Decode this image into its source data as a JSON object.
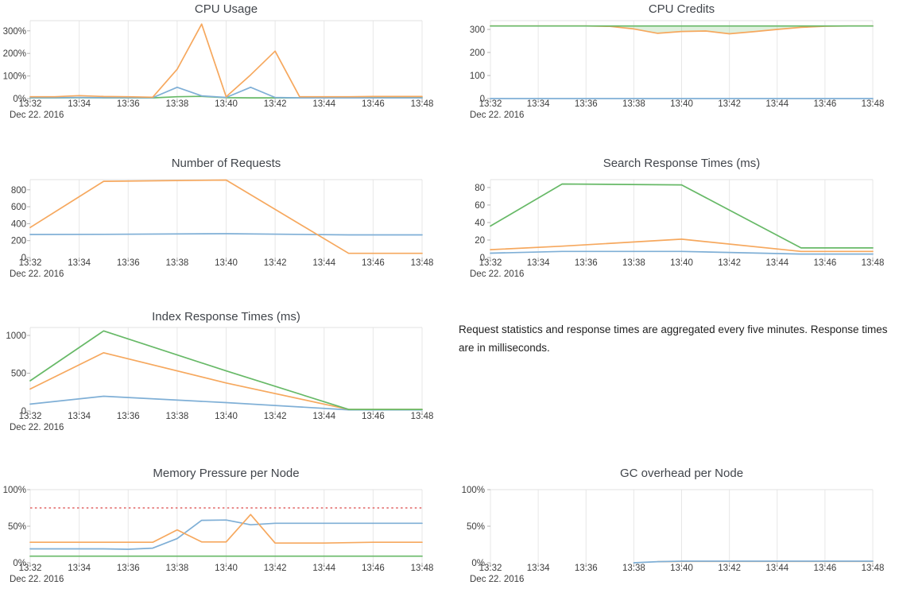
{
  "note": {
    "text": "Request statistics and response times are aggregated every five minutes. Response times are in milliseconds."
  },
  "palette": {
    "blue": "#7fafd6",
    "orange": "#f6a85e",
    "green": "#67b967",
    "red": "#e88a8a",
    "grid": "#e7e7e7",
    "top_border": "#e2e2e2",
    "tick_mark": "#b3b3b3",
    "axis_text": "#3d3d3d",
    "title_text": "#41454b",
    "fill_green": "rgba(103,185,103,0.22)"
  },
  "time_axis": {
    "date_label": "Dec 22. 2016",
    "tick_labels": [
      "13:32",
      "13:34",
      "13:36",
      "13:38",
      "13:40",
      "13:42",
      "13:44",
      "13:46",
      "13:48"
    ],
    "minutes_span": 16
  },
  "chart_data": [
    {
      "id": "cpu-usage",
      "type": "line",
      "title": "CPU Usage",
      "position": {
        "row": 0,
        "col": 0
      },
      "y_max": 345,
      "y_ticks": [
        {
          "v": 0,
          "label": "0%"
        },
        {
          "v": 100,
          "label": "100%"
        },
        {
          "v": 200,
          "label": "200%"
        },
        {
          "v": 300,
          "label": "300%"
        }
      ],
      "series": [
        {
          "name": "green-series",
          "color": "green",
          "x": [
            0,
            1,
            2,
            3,
            4,
            5,
            6,
            7,
            8,
            9,
            10,
            11,
            12,
            13,
            14,
            15,
            16
          ],
          "y": [
            3,
            3,
            4,
            3,
            3,
            3,
            8,
            10,
            4,
            3,
            3,
            3,
            3,
            3,
            4,
            4,
            4
          ]
        },
        {
          "name": "blue-series",
          "color": "blue",
          "x": [
            0,
            1,
            2,
            3,
            4,
            5,
            6,
            7,
            8,
            9,
            10,
            11,
            12,
            13,
            14,
            15,
            16
          ],
          "y": [
            4,
            4,
            5,
            4,
            4,
            4,
            50,
            12,
            5,
            50,
            5,
            3,
            3,
            3,
            3,
            3,
            3
          ]
        },
        {
          "name": "orange-series",
          "color": "orange",
          "x": [
            0,
            1,
            2,
            3,
            4,
            5,
            6,
            7,
            8,
            9,
            10,
            11,
            12,
            13,
            14,
            15,
            16
          ],
          "y": [
            8,
            8,
            13,
            9,
            8,
            6,
            130,
            330,
            8,
            105,
            210,
            8,
            8,
            8,
            9,
            9,
            9
          ]
        }
      ]
    },
    {
      "id": "cpu-credits",
      "type": "line",
      "title": "CPU Credits",
      "position": {
        "row": 0,
        "col": 1
      },
      "y_max": 338,
      "y_ticks": [
        {
          "v": 0,
          "label": "0"
        },
        {
          "v": 100,
          "label": "100"
        },
        {
          "v": 200,
          "label": "200"
        },
        {
          "v": 300,
          "label": "300"
        }
      ],
      "fill_between": {
        "upper": "green-series",
        "lower": "orange-series",
        "color_key": "fill_green"
      },
      "series": [
        {
          "name": "blue-series",
          "color": "blue",
          "x": [
            0,
            1,
            2,
            3,
            4,
            5,
            6,
            7,
            8,
            9,
            10,
            11,
            12,
            13,
            14,
            15,
            16
          ],
          "y": [
            0,
            0,
            0,
            0,
            0,
            0,
            0,
            0,
            0,
            0,
            0,
            0,
            0,
            0,
            0,
            0,
            0
          ]
        },
        {
          "name": "orange-series",
          "color": "orange",
          "x": [
            0,
            1,
            2,
            3,
            4,
            5,
            6,
            7,
            8,
            9,
            10,
            11,
            12,
            13,
            14,
            15,
            16
          ],
          "y": [
            315,
            315,
            315,
            315,
            315,
            313,
            302,
            283,
            291,
            293,
            281,
            290,
            300,
            309,
            314,
            315,
            315
          ]
        },
        {
          "name": "green-series",
          "color": "green",
          "x": [
            0,
            1,
            2,
            3,
            4,
            5,
            6,
            7,
            8,
            9,
            10,
            11,
            12,
            13,
            14,
            15,
            16
          ],
          "y": [
            315,
            315,
            315,
            315,
            315,
            315,
            315,
            315,
            315,
            315,
            315,
            315,
            315,
            315,
            315,
            315,
            315
          ]
        }
      ]
    },
    {
      "id": "number-of-requests",
      "type": "line",
      "title": "Number of Requests",
      "position": {
        "row": 1,
        "col": 0
      },
      "y_max": 920,
      "y_ticks": [
        {
          "v": 0,
          "label": "0"
        },
        {
          "v": 200,
          "label": "200"
        },
        {
          "v": 400,
          "label": "400"
        },
        {
          "v": 600,
          "label": "600"
        },
        {
          "v": 800,
          "label": "800"
        }
      ],
      "series": [
        {
          "name": "blue-series",
          "color": "blue",
          "x": [
            0,
            3,
            8,
            13,
            16
          ],
          "y": [
            272,
            274,
            282,
            268,
            268
          ]
        },
        {
          "name": "orange-series",
          "color": "orange",
          "x": [
            0,
            3,
            8,
            13,
            16
          ],
          "y": [
            355,
            900,
            915,
            50,
            50
          ]
        }
      ]
    },
    {
      "id": "search-response-times",
      "type": "line",
      "title": "Search Response Times (ms)",
      "position": {
        "row": 1,
        "col": 1
      },
      "y_max": 89,
      "y_ticks": [
        {
          "v": 0,
          "label": "0"
        },
        {
          "v": 20,
          "label": "20"
        },
        {
          "v": 40,
          "label": "40"
        },
        {
          "v": 60,
          "label": "60"
        },
        {
          "v": 80,
          "label": "80"
        }
      ],
      "series": [
        {
          "name": "blue-series",
          "color": "blue",
          "x": [
            0,
            3,
            8,
            13,
            16
          ],
          "y": [
            5,
            7,
            7,
            4,
            4
          ]
        },
        {
          "name": "orange-series",
          "color": "orange",
          "x": [
            0,
            3,
            8,
            13,
            16
          ],
          "y": [
            9,
            13,
            21,
            7,
            7
          ]
        },
        {
          "name": "green-series",
          "color": "green",
          "x": [
            0,
            3,
            8,
            13,
            16
          ],
          "y": [
            36,
            84,
            83,
            11,
            11
          ]
        }
      ]
    },
    {
      "id": "index-response-times",
      "type": "line",
      "title": "Index Response Times (ms)",
      "position": {
        "row": 2,
        "col": 0
      },
      "y_max": 1105,
      "y_ticks": [
        {
          "v": 0,
          "label": "0"
        },
        {
          "v": 500,
          "label": "500"
        },
        {
          "v": 1000,
          "label": "1000"
        }
      ],
      "series": [
        {
          "name": "blue-series",
          "color": "blue",
          "x": [
            0,
            3,
            8,
            13,
            16
          ],
          "y": [
            90,
            195,
            110,
            15,
            15
          ]
        },
        {
          "name": "orange-series",
          "color": "orange",
          "x": [
            0,
            3,
            8,
            13,
            16
          ],
          "y": [
            290,
            770,
            370,
            20,
            20
          ]
        },
        {
          "name": "green-series",
          "color": "green",
          "x": [
            0,
            3,
            8,
            13,
            16
          ],
          "y": [
            400,
            1060,
            530,
            20,
            20
          ]
        }
      ]
    },
    {
      "id": "memory-pressure-per-node",
      "type": "line",
      "title": "Memory Pressure per Node",
      "position": {
        "row": 3,
        "col": 0
      },
      "y_max": 100,
      "y_ticks": [
        {
          "v": 0,
          "label": "0%"
        },
        {
          "v": 50,
          "label": "50%"
        },
        {
          "v": 100,
          "label": "100%"
        }
      ],
      "series": [
        {
          "name": "green-series",
          "color": "green",
          "x": [
            0,
            1,
            2,
            3,
            4,
            5,
            6,
            7,
            8,
            9,
            10,
            11,
            12,
            13,
            14,
            15,
            16
          ],
          "y": [
            9,
            9,
            9,
            9,
            9,
            9,
            9,
            9,
            9,
            9,
            9,
            9,
            9,
            9,
            9,
            9,
            9
          ]
        },
        {
          "name": "blue-series",
          "color": "blue",
          "x": [
            0,
            1,
            2,
            3,
            4,
            5,
            6,
            7,
            8,
            9,
            10,
            11,
            12,
            13,
            14,
            15,
            16
          ],
          "y": [
            19,
            19,
            19,
            19,
            18.5,
            20,
            33,
            58,
            58.5,
            52,
            54,
            54,
            54,
            54,
            54,
            54,
            54
          ]
        },
        {
          "name": "orange-series",
          "color": "orange",
          "x": [
            0,
            1,
            2,
            3,
            4,
            5,
            6,
            7,
            8,
            9,
            10,
            11,
            12,
            13,
            14,
            15,
            16
          ],
          "y": [
            28,
            28,
            28,
            28,
            28,
            28,
            45,
            28.5,
            28.5,
            66,
            27,
            27,
            27,
            27.5,
            28,
            28,
            28
          ]
        },
        {
          "name": "threshold-line",
          "color": "red",
          "dash": true,
          "x": [
            0,
            16
          ],
          "y": [
            75,
            75
          ]
        }
      ]
    },
    {
      "id": "gc-overhead-per-node",
      "type": "line",
      "title": "GC overhead per Node",
      "position": {
        "row": 3,
        "col": 1
      },
      "y_max": 100,
      "y_ticks": [
        {
          "v": 0,
          "label": "0%"
        },
        {
          "v": 50,
          "label": "50%"
        },
        {
          "v": 100,
          "label": "100%"
        }
      ],
      "series": [
        {
          "name": "orange-series",
          "color": "orange",
          "x": [
            7,
            8,
            9,
            10,
            11,
            12,
            13,
            14,
            15,
            16
          ],
          "y": [
            1.5,
            1.8,
            1.8,
            1.8,
            1.8,
            1.8,
            1.8,
            1.8,
            1.8,
            1.8
          ]
        },
        {
          "name": "blue-series",
          "color": "blue",
          "x": [
            6,
            7,
            8,
            9,
            10,
            11,
            12,
            13,
            14,
            15,
            16
          ],
          "y": [
            0,
            1.5,
            2.2,
            2.2,
            2.2,
            2.2,
            2.2,
            2.2,
            2.2,
            2.2,
            2.2
          ]
        }
      ]
    }
  ]
}
